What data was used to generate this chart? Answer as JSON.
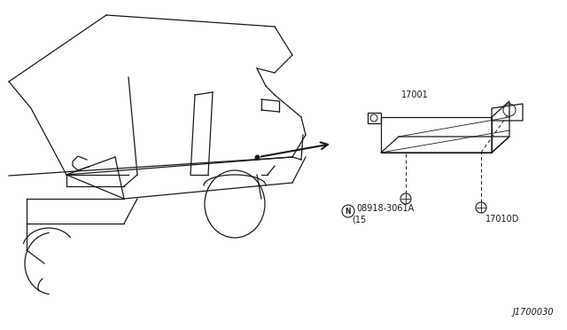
{
  "bg_color": "#ffffff",
  "line_color": "#1a1a1a",
  "diagram_ref": "J1700030",
  "labels": {
    "part1_code": "08918-3061A",
    "part1_N": "N",
    "part1_sub": "(15",
    "part2_code": "17010D",
    "part3_code": "17001"
  }
}
